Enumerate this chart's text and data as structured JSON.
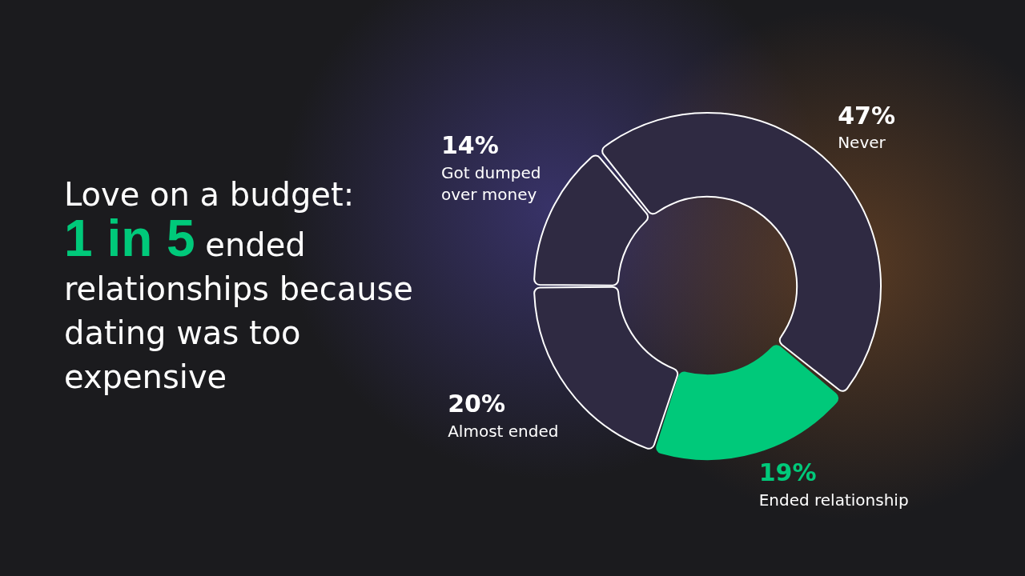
{
  "chart_data": {
    "type": "donut",
    "title": "Love on a budget:",
    "subtitle": "1 in 5 ended relationships because dating was too expensive",
    "categories": [
      "Never",
      "Ended relationship",
      "Almost ended",
      "Got dumped over money"
    ],
    "values": [
      47,
      19,
      20,
      14
    ],
    "colors": [
      "#2f2a42",
      "#00c97a",
      "#2f2a42",
      "#2f2a42"
    ],
    "value_labels": [
      "47%",
      "19%",
      "20%",
      "14%"
    ]
  }
}
